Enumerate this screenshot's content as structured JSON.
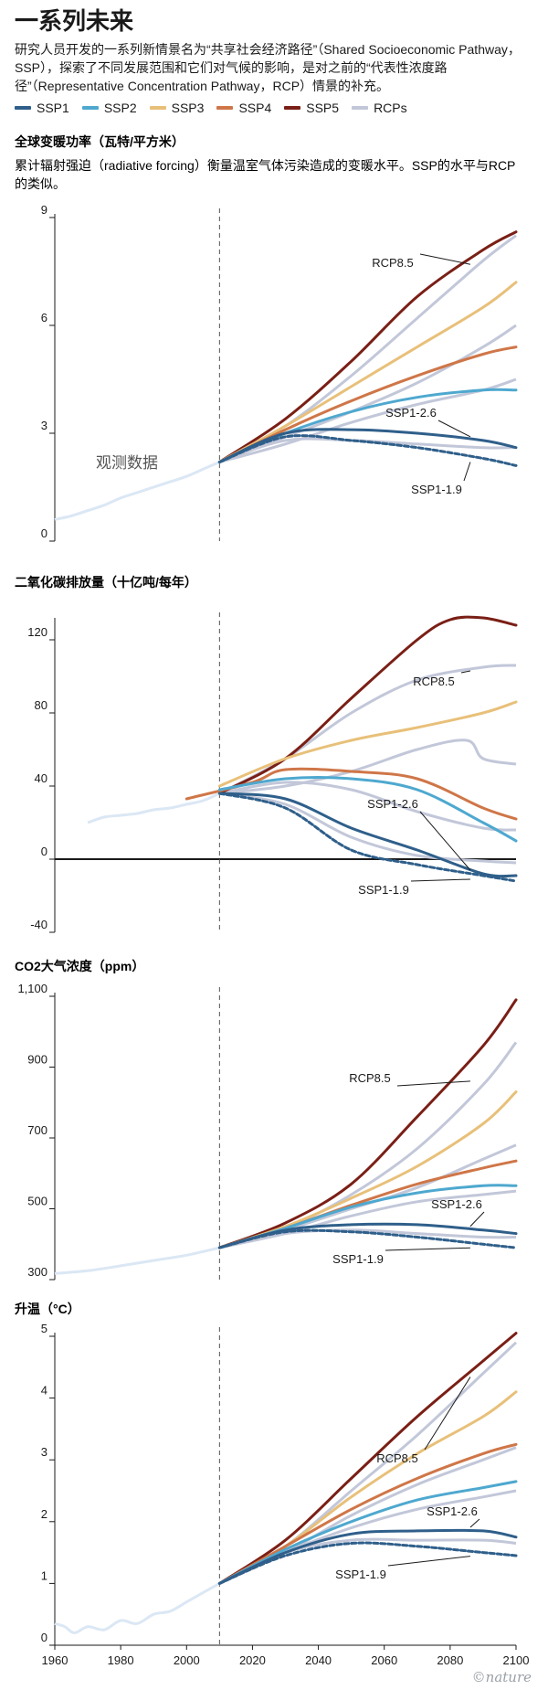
{
  "header": {
    "title": "一系列未来",
    "intro": "研究人员开发的一系列新情景名为“共享社会经济路径”（Shared Socioeconomic Pathway，SSP），探索了不同发展范围和它们对气候的影响，是对之前的“代表性浓度路径”（Representative Concentration Pathway，RCP）情景的补充。"
  },
  "legend": [
    {
      "name": "SSP1",
      "color": "#2f5f8a"
    },
    {
      "name": "SSP2",
      "color": "#4ea8cf"
    },
    {
      "name": "SSP3",
      "color": "#e8c079"
    },
    {
      "name": "SSP4",
      "color": "#cf7648"
    },
    {
      "name": "SSP5",
      "color": "#7a1f16"
    },
    {
      "name": "RCPs",
      "color": "#c2c7d9"
    }
  ],
  "credit": "©nature",
  "chart_data": [
    {
      "type": "line",
      "title": "全球变暖功率（瓦特/平方米）",
      "subtitle": "累计辐射强迫（radiative forcing）衡量温室气体污染造成的变暖水平。SSP的水平与RCP的类似。",
      "xlim": [
        1960,
        2100
      ],
      "ylim": [
        0,
        9
      ],
      "yticks": [
        0,
        3,
        6,
        9
      ],
      "ytick_labels": [
        "0",
        "3",
        "6",
        "9"
      ],
      "divider_x": 2010,
      "labels": {
        "observed": "观测数据",
        "rcp": "RCP8.5",
        "ssp126": "SSP1-2.6",
        "ssp119": "SSP1-1.9"
      },
      "observed": {
        "x": [
          1960,
          1965,
          1970,
          1975,
          1980,
          1985,
          1990,
          1995,
          2000,
          2005,
          2010
        ],
        "y": [
          0.6,
          0.7,
          0.85,
          1.0,
          1.2,
          1.35,
          1.5,
          1.65,
          1.8,
          2.0,
          2.2
        ]
      },
      "rcps": [
        {
          "x": [
            2010,
            2030,
            2050,
            2070,
            2090,
            2100
          ],
          "y": [
            2.2,
            3.2,
            4.6,
            6.2,
            7.8,
            8.5
          ]
        },
        {
          "x": [
            2010,
            2030,
            2050,
            2070,
            2090,
            2100
          ],
          "y": [
            2.2,
            2.9,
            3.6,
            4.4,
            5.4,
            6.0
          ]
        },
        {
          "x": [
            2010,
            2030,
            2050,
            2070,
            2090,
            2100
          ],
          "y": [
            2.2,
            2.7,
            3.3,
            3.8,
            4.2,
            4.5
          ]
        },
        {
          "x": [
            2010,
            2030,
            2050,
            2070,
            2090,
            2100
          ],
          "y": [
            2.2,
            2.8,
            2.8,
            2.7,
            2.6,
            2.6
          ]
        }
      ],
      "series": [
        {
          "key": "SSP5",
          "x": [
            2010,
            2030,
            2050,
            2070,
            2090,
            2100
          ],
          "y": [
            2.2,
            3.4,
            5.0,
            6.8,
            8.1,
            8.6
          ]
        },
        {
          "key": "SSP3",
          "x": [
            2010,
            2030,
            2050,
            2070,
            2090,
            2100
          ],
          "y": [
            2.2,
            3.2,
            4.3,
            5.4,
            6.5,
            7.2
          ]
        },
        {
          "key": "SSP4",
          "x": [
            2010,
            2030,
            2050,
            2070,
            2090,
            2100
          ],
          "y": [
            2.2,
            3.1,
            3.9,
            4.6,
            5.2,
            5.4
          ]
        },
        {
          "key": "SSP2",
          "x": [
            2010,
            2030,
            2050,
            2070,
            2090,
            2100
          ],
          "y": [
            2.2,
            3.0,
            3.6,
            4.0,
            4.2,
            4.2
          ]
        },
        {
          "key": "SSP1",
          "x": [
            2010,
            2030,
            2050,
            2070,
            2090,
            2100
          ],
          "y": [
            2.2,
            3.0,
            3.1,
            3.0,
            2.8,
            2.6
          ]
        },
        {
          "key": "SSP1",
          "dashed": true,
          "x": [
            2010,
            2030,
            2050,
            2070,
            2090,
            2100
          ],
          "y": [
            2.2,
            2.9,
            2.8,
            2.6,
            2.3,
            2.1
          ]
        }
      ]
    },
    {
      "type": "line",
      "title": "二氧化碳排放量（十亿吨/每年）",
      "xlim": [
        1960,
        2100
      ],
      "ylim": [
        -40,
        130
      ],
      "yticks": [
        -40,
        0,
        40,
        80,
        120
      ],
      "ytick_labels": [
        "-40",
        "0",
        "40",
        "80",
        "120"
      ],
      "divider_x": 2010,
      "zero_line": true,
      "labels": {
        "rcp": "RCP8.5",
        "ssp126": "SSP1-2.6",
        "ssp119": "SSP1-1.9"
      },
      "observed": {
        "x": [
          1970,
          1975,
          1980,
          1985,
          1990,
          1995,
          2000,
          2005,
          2010
        ],
        "y": [
          20,
          23,
          24,
          25,
          27,
          28,
          30,
          32,
          36
        ]
      },
      "rcps": [
        {
          "x": [
            2010,
            2030,
            2050,
            2070,
            2090,
            2100
          ],
          "y": [
            36,
            55,
            80,
            98,
            105,
            106
          ]
        },
        {
          "x": [
            2010,
            2030,
            2050,
            2070,
            2085,
            2090,
            2100
          ],
          "y": [
            36,
            40,
            48,
            60,
            65,
            55,
            52
          ]
        },
        {
          "x": [
            2010,
            2030,
            2050,
            2070,
            2090,
            2100
          ],
          "y": [
            36,
            42,
            38,
            26,
            17,
            16
          ]
        },
        {
          "x": [
            2010,
            2030,
            2050,
            2070,
            2090,
            2100
          ],
          "y": [
            36,
            30,
            12,
            2,
            -1,
            -2
          ]
        }
      ],
      "series": [
        {
          "key": "SSP5",
          "x": [
            2010,
            2030,
            2050,
            2070,
            2080,
            2090,
            2100
          ],
          "y": [
            36,
            55,
            88,
            120,
            131,
            132,
            128
          ]
        },
        {
          "key": "SSP3",
          "x": [
            2010,
            2030,
            2050,
            2070,
            2090,
            2100
          ],
          "y": [
            40,
            55,
            65,
            72,
            80,
            86
          ]
        },
        {
          "key": "SSP4",
          "x": [
            2000,
            2020,
            2030,
            2050,
            2070,
            2090,
            2100
          ],
          "y": [
            33,
            42,
            49,
            48,
            44,
            28,
            22
          ]
        },
        {
          "key": "SSP2",
          "x": [
            2010,
            2030,
            2050,
            2070,
            2090,
            2100
          ],
          "y": [
            38,
            44,
            44,
            38,
            20,
            10
          ]
        },
        {
          "key": "SSP1",
          "x": [
            2010,
            2030,
            2050,
            2070,
            2090,
            2100
          ],
          "y": [
            36,
            33,
            17,
            5,
            -8,
            -9
          ]
        },
        {
          "key": "SSP1",
          "dashed": true,
          "x": [
            2010,
            2030,
            2050,
            2070,
            2090,
            2100
          ],
          "y": [
            36,
            28,
            5,
            -3,
            -9,
            -12
          ]
        }
      ]
    },
    {
      "type": "line",
      "title": "CO2大气浓度（ppm）",
      "xlim": [
        1960,
        2100
      ],
      "ylim": [
        300,
        1100
      ],
      "yticks": [
        300,
        500,
        700,
        900,
        1100
      ],
      "ytick_labels": [
        "300",
        "500",
        "700",
        "900",
        "1,100"
      ],
      "divider_x": 2010,
      "labels": {
        "rcp": "RCP8.5",
        "ssp126": "SSP1-2.6",
        "ssp119": "SSP1-1.9"
      },
      "observed": {
        "x": [
          1960,
          1970,
          1980,
          1990,
          2000,
          2010
        ],
        "y": [
          317,
          325,
          339,
          354,
          369,
          390
        ]
      },
      "rcps": [
        {
          "x": [
            2010,
            2030,
            2050,
            2070,
            2090,
            2100
          ],
          "y": [
            390,
            445,
            540,
            670,
            850,
            970
          ]
        },
        {
          "x": [
            2010,
            2030,
            2050,
            2070,
            2090,
            2100
          ],
          "y": [
            390,
            440,
            500,
            560,
            640,
            680
          ]
        },
        {
          "x": [
            2010,
            2030,
            2050,
            2070,
            2090,
            2100
          ],
          "y": [
            390,
            430,
            480,
            520,
            540,
            550
          ]
        },
        {
          "x": [
            2010,
            2030,
            2050,
            2070,
            2090,
            2100
          ],
          "y": [
            390,
            430,
            440,
            430,
            420,
            420
          ]
        }
      ],
      "series": [
        {
          "key": "SSP5",
          "x": [
            2010,
            2030,
            2050,
            2070,
            2090,
            2100
          ],
          "y": [
            390,
            460,
            570,
            760,
            960,
            1090
          ]
        },
        {
          "key": "SSP3",
          "x": [
            2010,
            2030,
            2050,
            2070,
            2090,
            2100
          ],
          "y": [
            390,
            450,
            530,
            620,
            740,
            830
          ]
        },
        {
          "key": "SSP4",
          "x": [
            2010,
            2030,
            2050,
            2070,
            2090,
            2100
          ],
          "y": [
            390,
            445,
            510,
            570,
            615,
            635
          ]
        },
        {
          "key": "SSP2",
          "x": [
            2010,
            2030,
            2050,
            2070,
            2090,
            2100
          ],
          "y": [
            390,
            445,
            505,
            545,
            565,
            565
          ]
        },
        {
          "key": "SSP1",
          "x": [
            2010,
            2030,
            2050,
            2070,
            2090,
            2100
          ],
          "y": [
            390,
            440,
            455,
            455,
            440,
            430
          ]
        },
        {
          "key": "SSP1",
          "dashed": true,
          "x": [
            2010,
            2030,
            2050,
            2070,
            2090,
            2100
          ],
          "y": [
            390,
            435,
            435,
            420,
            400,
            390
          ]
        }
      ]
    },
    {
      "type": "line",
      "title": "升温（°C）",
      "xlim": [
        1960,
        2100
      ],
      "ylim": [
        0,
        5
      ],
      "yticks": [
        0,
        1,
        2,
        3,
        4,
        5
      ],
      "ytick_labels": [
        "0",
        "1",
        "2",
        "3",
        "4",
        "5"
      ],
      "xticks": [
        1960,
        1980,
        2000,
        2020,
        2040,
        2060,
        2080,
        2100
      ],
      "divider_x": 2010,
      "labels": {
        "rcp": "RCP8.5",
        "ssp126": "SSP1-2.6",
        "ssp119": "SSP1-1.9"
      },
      "observed": {
        "x": [
          1960,
          1963,
          1966,
          1970,
          1975,
          1980,
          1985,
          1990,
          1995,
          2000,
          2005,
          2010
        ],
        "y": [
          0.35,
          0.3,
          0.2,
          0.3,
          0.25,
          0.4,
          0.35,
          0.5,
          0.55,
          0.7,
          0.85,
          1.0
        ]
      },
      "rcps": [
        {
          "x": [
            2010,
            2030,
            2050,
            2070,
            2090,
            2100
          ],
          "y": [
            1.0,
            1.6,
            2.5,
            3.4,
            4.4,
            4.9
          ]
        },
        {
          "x": [
            2010,
            2030,
            2050,
            2070,
            2090,
            2100
          ],
          "y": [
            1.0,
            1.5,
            2.1,
            2.6,
            3.0,
            3.2
          ]
        },
        {
          "x": [
            2010,
            2030,
            2050,
            2070,
            2090,
            2100
          ],
          "y": [
            1.0,
            1.5,
            1.9,
            2.2,
            2.4,
            2.5
          ]
        },
        {
          "x": [
            2010,
            2030,
            2050,
            2070,
            2090,
            2100
          ],
          "y": [
            1.0,
            1.5,
            1.7,
            1.7,
            1.7,
            1.65
          ]
        }
      ],
      "series": [
        {
          "key": "SSP5",
          "x": [
            2010,
            2030,
            2050,
            2070,
            2090,
            2100
          ],
          "y": [
            1.0,
            1.7,
            2.7,
            3.7,
            4.6,
            5.05
          ]
        },
        {
          "key": "SSP3",
          "x": [
            2010,
            2030,
            2050,
            2070,
            2090,
            2100
          ],
          "y": [
            1.0,
            1.6,
            2.4,
            3.1,
            3.7,
            4.1
          ]
        },
        {
          "key": "SSP4",
          "x": [
            2010,
            2030,
            2050,
            2070,
            2090,
            2100
          ],
          "y": [
            1.0,
            1.6,
            2.2,
            2.7,
            3.1,
            3.25
          ]
        },
        {
          "key": "SSP2",
          "x": [
            2010,
            2030,
            2050,
            2070,
            2090,
            2100
          ],
          "y": [
            1.0,
            1.55,
            2.0,
            2.35,
            2.55,
            2.65
          ]
        },
        {
          "key": "SSP1",
          "x": [
            2010,
            2030,
            2050,
            2070,
            2090,
            2100
          ],
          "y": [
            1.0,
            1.5,
            1.8,
            1.85,
            1.85,
            1.75
          ]
        },
        {
          "key": "SSP1",
          "dashed": true,
          "x": [
            2010,
            2030,
            2050,
            2070,
            2090,
            2100
          ],
          "y": [
            1.0,
            1.45,
            1.65,
            1.6,
            1.5,
            1.45
          ]
        }
      ]
    }
  ]
}
